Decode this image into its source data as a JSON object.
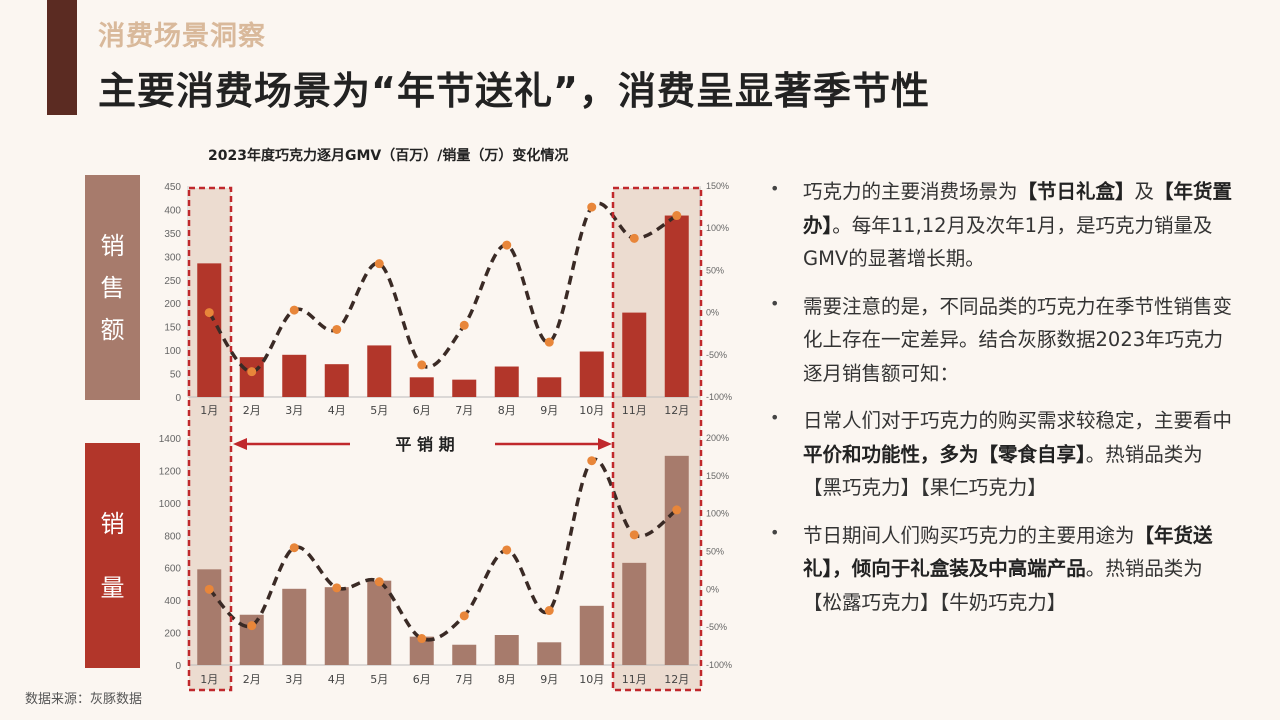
{
  "header": {
    "section_title": "消费场景洞察",
    "main_title": "主要消费场景为“年节送礼”，消费呈显著季节性"
  },
  "chart_title": "2023年度巧克力逐月GMV（百万）/销量（万）变化情况",
  "side_labels": {
    "sales": [
      "销",
      "售",
      "额"
    ],
    "volume": [
      "销",
      "量"
    ]
  },
  "flat_period_label": "平 销 期",
  "source": "数据来源：灰豚数据",
  "colors": {
    "sales_bar": "#b2362a",
    "volume_bar": "#a77b6c",
    "growth_line": "#3a2a25",
    "growth_point": "#e8863a",
    "highlight_border": "#c0282c",
    "highlight_fill": "#ecdcd0",
    "arrow": "#c0282c"
  },
  "bullets": [
    [
      {
        "t": "巧克力的主要消费场景为"
      },
      {
        "t": "【节日礼盒】",
        "b": true
      },
      {
        "t": "及"
      },
      {
        "t": "【年货置办】",
        "b": true
      },
      {
        "t": "。每年11,12月及次年1月，是巧克力销量及GMV的显著增长期。"
      }
    ],
    [
      {
        "t": "需要注意的是，不同品类的巧克力在季节性销售变化上存在一定差异。结合灰豚数据2023年巧克力逐月销售额可知："
      }
    ],
    [
      {
        "t": "日常人们对于巧克力的购买需求较稳定，主要看中"
      },
      {
        "t": "平价和功能性，多为【零食自享】",
        "b": true
      },
      {
        "t": "。热销品类为【黑巧克力】【果仁巧克力】"
      }
    ],
    [
      {
        "t": "节日期间人们购买巧克力的主要用途为"
      },
      {
        "t": "【年货送礼】，倾向于礼盒装及中高端产品",
        "b": true
      },
      {
        "t": "。热销品类为【松露巧克力】【牛奶巧克力】"
      }
    ]
  ],
  "chart_data": [
    {
      "type": "bar",
      "categories": [
        "1月",
        "2月",
        "3月",
        "4月",
        "5月",
        "6月",
        "7月",
        "8月",
        "9月",
        "10月",
        "11月",
        "12月"
      ],
      "series": [
        {
          "values": [
            285,
            85,
            90,
            70,
            110,
            42,
            37,
            65,
            42,
            97,
            180,
            387
          ]
        },
        {
          "values": [
            0,
            -70,
            3,
            -20,
            58,
            -62,
            -15,
            80,
            -35,
            125,
            88,
            115
          ]
        }
      ],
      "ylim": [
        0,
        450
      ],
      "yticks": [
        0,
        50,
        100,
        150,
        200,
        250,
        300,
        350,
        400,
        450
      ],
      "y2lim": [
        -100,
        150
      ],
      "y2ticks": [
        "-100%",
        "-50%",
        "0%",
        "50%",
        "100%",
        "150%"
      ]
    },
    {
      "type": "bar",
      "categories": [
        "1月",
        "2月",
        "3月",
        "4月",
        "5月",
        "6月",
        "7月",
        "8月",
        "9月",
        "10月",
        "11月",
        "12月"
      ],
      "series": [
        {
          "values": [
            590,
            310,
            470,
            480,
            520,
            175,
            125,
            185,
            140,
            365,
            630,
            1290
          ]
        },
        {
          "values": [
            0,
            -48,
            55,
            2,
            10,
            -65,
            -35,
            52,
            -28,
            170,
            72,
            105
          ]
        }
      ],
      "ylim": [
        0,
        1400
      ],
      "yticks": [
        0,
        200,
        400,
        600,
        800,
        1000,
        1200,
        1400
      ],
      "y2lim": [
        -100,
        200
      ],
      "y2ticks": [
        "-100%",
        "-50%",
        "0%",
        "50%",
        "100%",
        "150%",
        "200%"
      ]
    }
  ]
}
